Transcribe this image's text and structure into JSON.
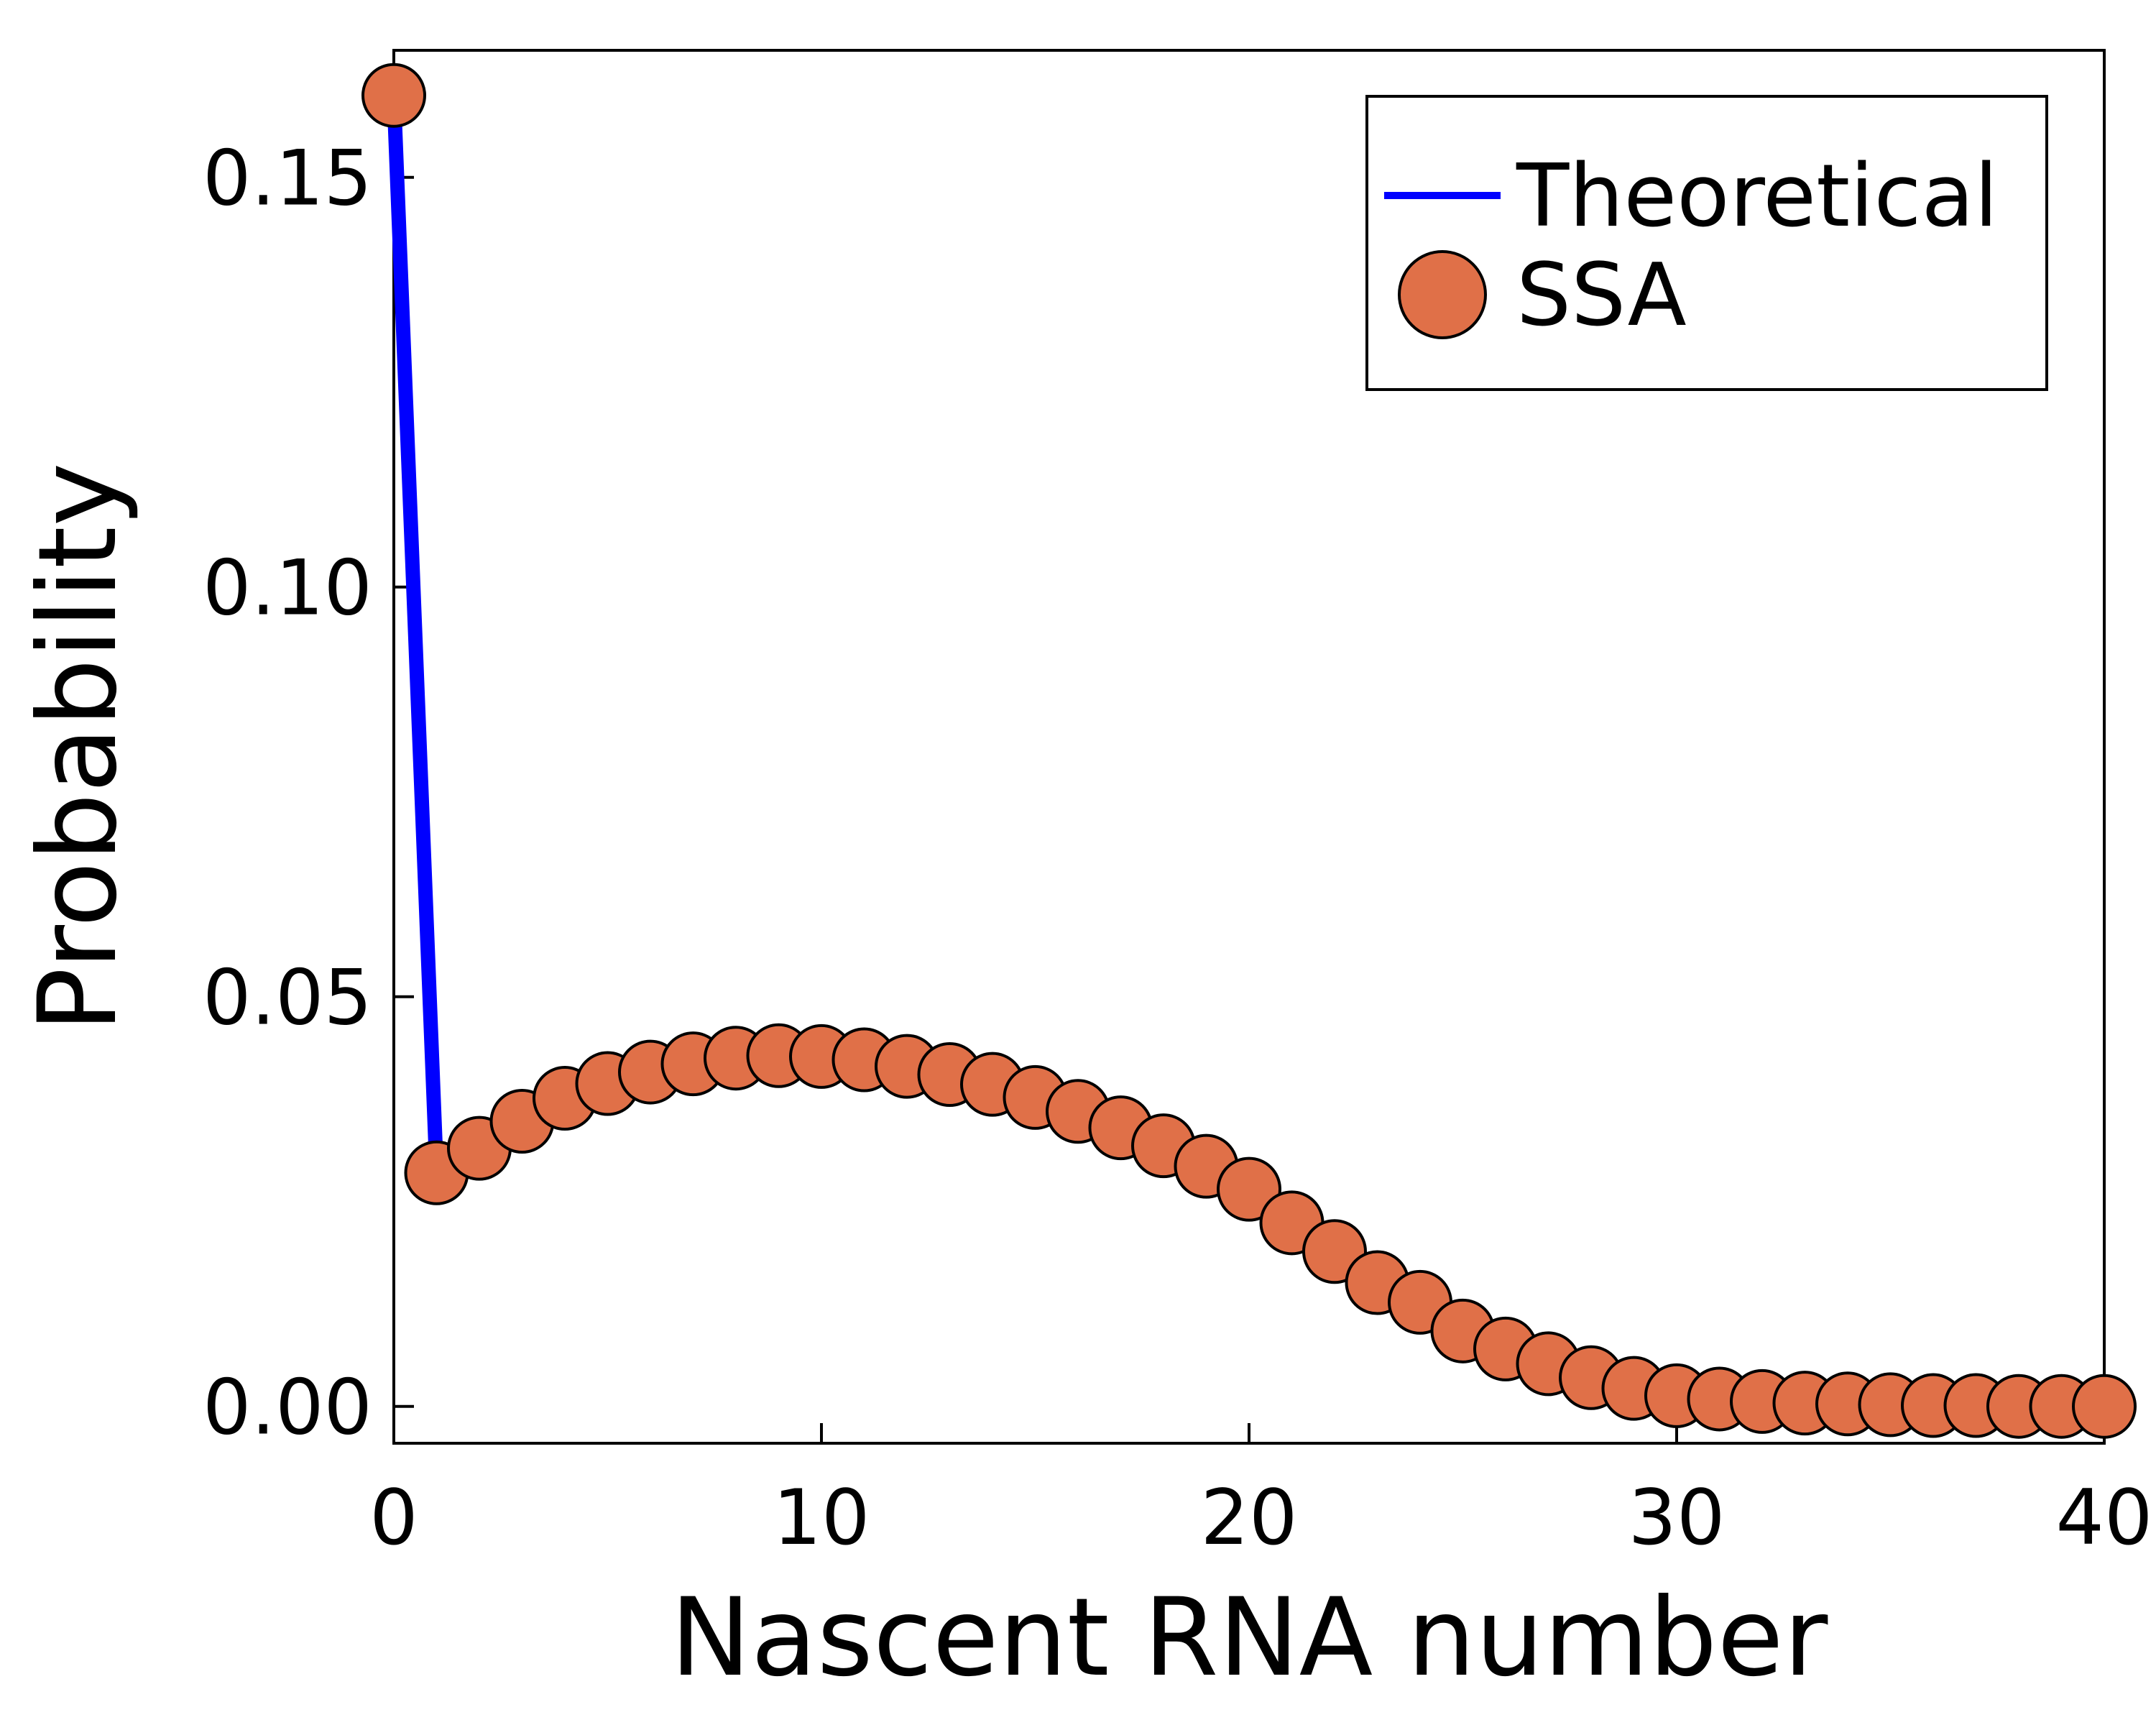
{
  "chart_data": {
    "type": "line",
    "xlabel": "Nascent RNA number",
    "ylabel": "Probability",
    "xlim": [
      0,
      40
    ],
    "ylim": [
      -0.0045,
      0.1655
    ],
    "xticks": [
      0,
      10,
      20,
      30,
      40
    ],
    "xtick_labels": [
      "0",
      "10",
      "20",
      "30",
      "40"
    ],
    "yticks": [
      0.0,
      0.05,
      0.1,
      0.15
    ],
    "ytick_labels": [
      "0.00",
      "0.05",
      "0.10",
      "0.15"
    ],
    "grid": false,
    "legend_position": "top-right",
    "series": [
      {
        "name": "Theoretical",
        "style": "line",
        "color": "#0000ff",
        "x": [
          0,
          1,
          2,
          3,
          4,
          5,
          6,
          7,
          8,
          9,
          10,
          11,
          12,
          13,
          14,
          15,
          16,
          17,
          18,
          19,
          20,
          21,
          22,
          23,
          24,
          25,
          26,
          27,
          28,
          29,
          30,
          31,
          32,
          33,
          34,
          35,
          36,
          37,
          38,
          39,
          40
        ],
        "y": [
          0.16,
          0.0285,
          0.0315,
          0.0348,
          0.0376,
          0.0394,
          0.0408,
          0.0418,
          0.0425,
          0.0428,
          0.0427,
          0.0423,
          0.0415,
          0.0405,
          0.0393,
          0.0377,
          0.036,
          0.034,
          0.0318,
          0.0293,
          0.0265,
          0.0224,
          0.0189,
          0.0151,
          0.0127,
          0.0092,
          0.007,
          0.0052,
          0.0035,
          0.0022,
          0.0013,
          0.0009,
          0.0006,
          0.0004,
          0.0003,
          0.0002,
          0.0001,
          0.0001,
          0.0,
          0.0,
          0.0
        ]
      },
      {
        "name": "SSA",
        "style": "markers",
        "color": "#e07048",
        "x": [
          0,
          1,
          2,
          3,
          4,
          5,
          6,
          7,
          8,
          9,
          10,
          11,
          12,
          13,
          14,
          15,
          16,
          17,
          18,
          19,
          20,
          21,
          22,
          23,
          24,
          25,
          26,
          27,
          28,
          29,
          30,
          31,
          32,
          33,
          34,
          35,
          36,
          37,
          38,
          39,
          40
        ],
        "y": [
          0.16,
          0.0285,
          0.0315,
          0.0348,
          0.0376,
          0.0394,
          0.0408,
          0.0418,
          0.0425,
          0.0428,
          0.0427,
          0.0423,
          0.0415,
          0.0405,
          0.0393,
          0.0377,
          0.036,
          0.034,
          0.0318,
          0.0293,
          0.0265,
          0.0224,
          0.0189,
          0.0151,
          0.0127,
          0.0092,
          0.007,
          0.0052,
          0.0035,
          0.0022,
          0.0013,
          0.0009,
          0.0006,
          0.0004,
          0.0003,
          0.0002,
          0.0001,
          0.0001,
          0.0,
          0.0,
          0.0
        ]
      }
    ]
  }
}
